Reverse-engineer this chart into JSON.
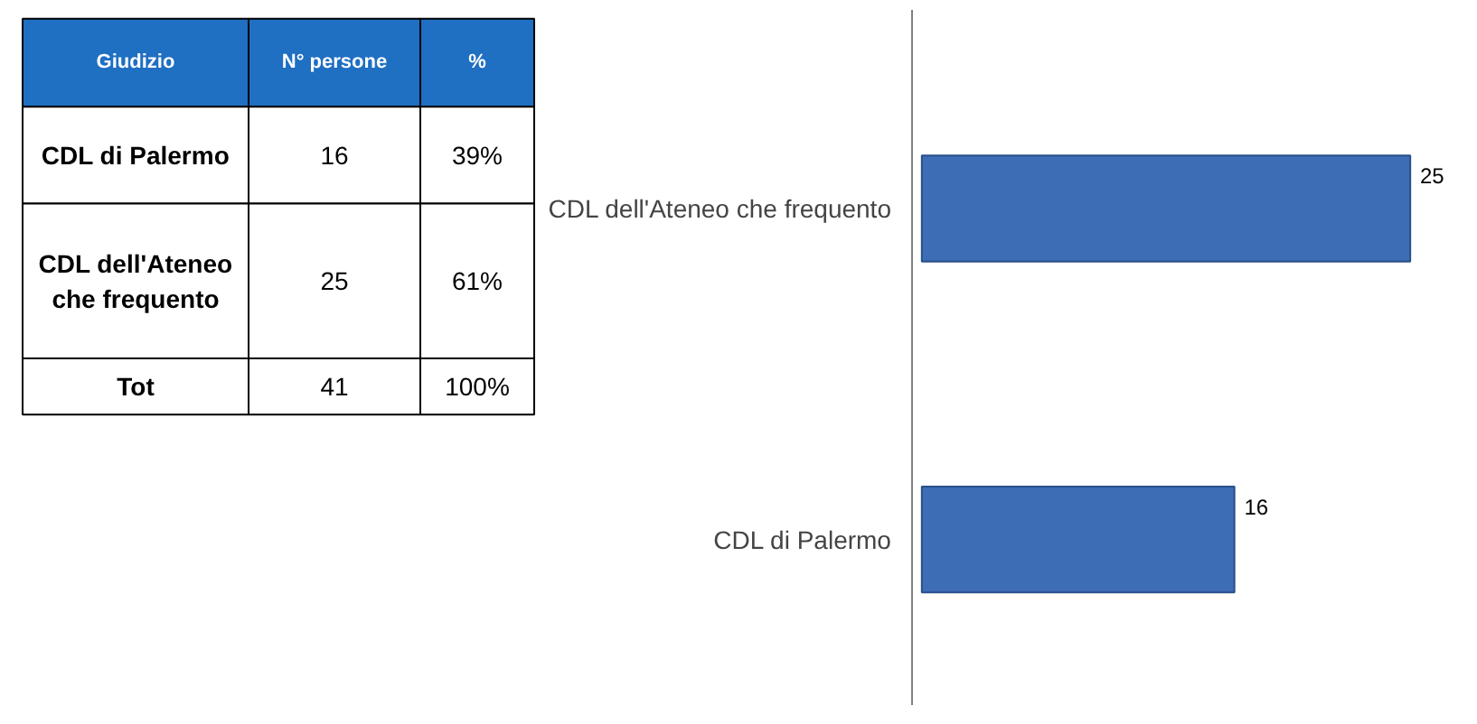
{
  "chart_data": {
    "type": "bar",
    "orientation": "horizontal",
    "categories": [
      "CDL dell'Ateneo che frequento",
      "CDL di Palermo"
    ],
    "values": [
      25,
      16
    ],
    "color": "#3d6db5",
    "data_labels": true,
    "grid": false,
    "annotations": [
      "Giudizio",
      "N° persone",
      "%",
      "CDL di Palermo",
      "16",
      "39%",
      "CDL dell'Ateneo che frequento",
      "25",
      "61%",
      "Tot",
      "41",
      "100%"
    ]
  }
}
